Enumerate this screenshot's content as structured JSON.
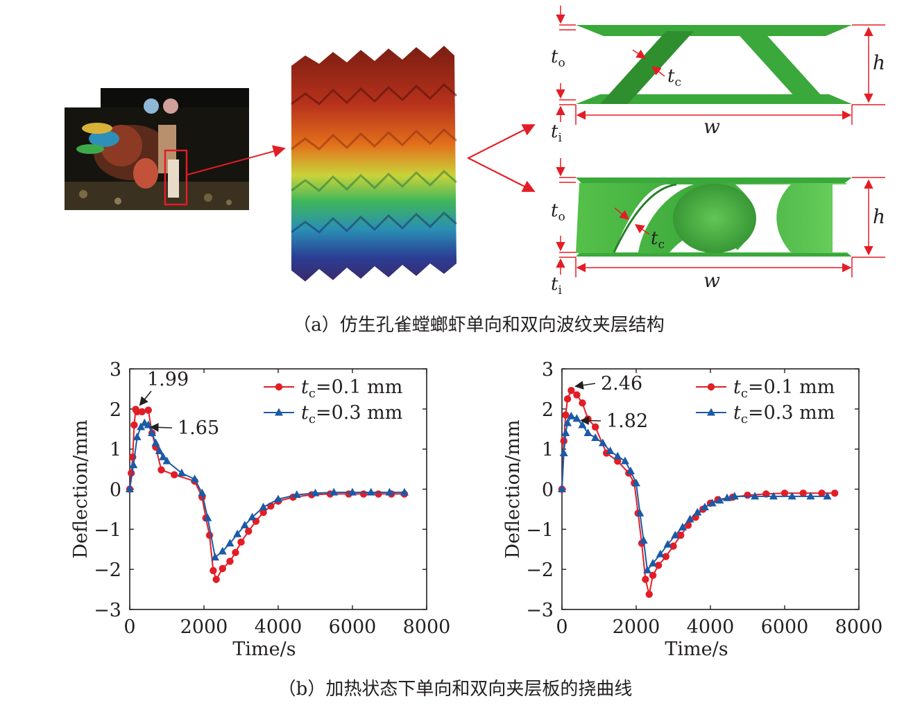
{
  "panel_a": {
    "caption": "（a）仿生孔雀螳螂虾单向和双向波纹夹层结构",
    "dimension_labels": {
      "to_main": "t",
      "to_sub": "o",
      "tc_main": "t",
      "tc_sub": "c",
      "ti_main": "t",
      "ti_sub": "i",
      "h": "h",
      "w": "w"
    }
  },
  "panel_b": {
    "caption": "（b）加热状态下单向和双向夹层板的挠曲线"
  },
  "colors": {
    "series_red": "#e31d25",
    "series_blue": "#1b5aa6",
    "frame_red": "#e31d25",
    "structure_green": "#3aa83a"
  },
  "chart_data": [
    {
      "type": "line",
      "xlabel": "Time/s",
      "ylabel": "Deflection/mm",
      "xlim": [
        0,
        8000
      ],
      "ylim": [
        -3,
        3
      ],
      "xticks": [
        0,
        2000,
        4000,
        6000,
        8000
      ],
      "yticks": [
        3,
        2,
        1,
        0,
        -1,
        -2,
        -3
      ],
      "xtick_labels": [
        "0",
        "2000",
        "4000",
        "6000",
        "8000"
      ],
      "ytick_labels": [
        "3",
        "2",
        "1",
        "0",
        "−1",
        "−2",
        "−3"
      ],
      "legend_position": "top-right",
      "series": [
        {
          "name_main": "t",
          "name_sub": "c",
          "name_rest": "=0.1 mm",
          "marker": "circle",
          "color": "#e31d25",
          "x": [
            0,
            40,
            80,
            120,
            160,
            200,
            330,
            500,
            600,
            700,
            850,
            1200,
            1750,
            1950,
            2050,
            2150,
            2250,
            2330,
            2500,
            2700,
            2850,
            3000,
            3200,
            3400,
            3600,
            3800,
            4000,
            4400,
            4900,
            5400,
            5900,
            6300,
            6700,
            7050,
            7400
          ],
          "y": [
            0,
            0.4,
            0.8,
            1.6,
            1.99,
            1.93,
            1.93,
            1.97,
            1.4,
            1.05,
            0.48,
            0.36,
            0.2,
            -0.2,
            -0.72,
            -1.15,
            -2.03,
            -2.25,
            -1.98,
            -1.8,
            -1.58,
            -1.32,
            -1.05,
            -0.8,
            -0.58,
            -0.42,
            -0.3,
            -0.2,
            -0.14,
            -0.12,
            -0.12,
            -0.12,
            -0.12,
            -0.12,
            -0.12
          ]
        },
        {
          "name_main": "t",
          "name_sub": "c",
          "name_rest": "=0.3 mm",
          "marker": "triangle",
          "color": "#1b5aa6",
          "x": [
            0,
            100,
            200,
            300,
            400,
            500,
            600,
            700,
            800,
            900,
            1000,
            1400,
            1750,
            1950,
            2100,
            2300,
            2500,
            2700,
            2900,
            3100,
            3300,
            3600,
            4000,
            4500,
            5000,
            5500,
            6000,
            6500,
            7000,
            7400
          ],
          "y": [
            0,
            0.6,
            1.3,
            1.55,
            1.65,
            1.6,
            1.4,
            1.15,
            0.95,
            0.8,
            0.7,
            0.4,
            0.25,
            -0.1,
            -0.72,
            -1.7,
            -1.55,
            -1.35,
            -1.12,
            -0.9,
            -0.7,
            -0.45,
            -0.25,
            -0.14,
            -0.1,
            -0.08,
            -0.08,
            -0.08,
            -0.08,
            -0.08
          ]
        }
      ],
      "annotations": [
        {
          "text": "1.99",
          "x": 160,
          "y": 1.99,
          "series": 0
        },
        {
          "text": "1.65",
          "x": 450,
          "y": 1.65,
          "series": 1
        }
      ]
    },
    {
      "type": "line",
      "xlabel": "Time/s",
      "ylabel": "Deflection/mm",
      "xlim": [
        0,
        8000
      ],
      "ylim": [
        -3,
        3
      ],
      "xticks": [
        0,
        2000,
        4000,
        6000,
        8000
      ],
      "yticks": [
        3,
        2,
        1,
        0,
        -1,
        -2,
        -3
      ],
      "xtick_labels": [
        "0",
        "2000",
        "4000",
        "6000",
        "8000"
      ],
      "ytick_labels": [
        "3",
        "2",
        "1",
        "0",
        "−1",
        "−2",
        "−3"
      ],
      "legend_position": "top-right",
      "series": [
        {
          "name_main": "t",
          "name_sub": "c",
          "name_rest": "=0.1 mm",
          "marker": "circle",
          "color": "#e31d25",
          "x": [
            0,
            50,
            100,
            150,
            250,
            400,
            550,
            700,
            900,
            1200,
            1500,
            1800,
            1950,
            2050,
            2150,
            2250,
            2350,
            2450,
            2600,
            2800,
            3000,
            3200,
            3400,
            3600,
            3800,
            4000,
            4200,
            4600,
            5000,
            5500,
            6000,
            6500,
            7000,
            7350
          ],
          "y": [
            0,
            1.2,
            1.85,
            2.25,
            2.46,
            2.35,
            2.15,
            1.75,
            1.55,
            0.9,
            0.7,
            0.4,
            0.15,
            -0.6,
            -1.35,
            -2.25,
            -2.62,
            -2.15,
            -1.9,
            -1.68,
            -1.42,
            -1.15,
            -0.9,
            -0.7,
            -0.5,
            -0.35,
            -0.26,
            -0.2,
            -0.15,
            -0.12,
            -0.1,
            -0.1,
            -0.1,
            -0.1
          ]
        },
        {
          "name_main": "t",
          "name_sub": "c",
          "name_rest": "=0.3 mm",
          "marker": "triangle",
          "color": "#1b5aa6",
          "x": [
            0,
            50,
            100,
            150,
            250,
            400,
            550,
            700,
            900,
            1100,
            1300,
            1500,
            1700,
            1850,
            2000,
            2100,
            2200,
            2300,
            2450,
            2650,
            2850,
            3050,
            3250,
            3450,
            3650,
            3850,
            4050,
            4250,
            4450,
            4650,
            5200,
            5700,
            6200,
            6700,
            7150
          ],
          "y": [
            0,
            0.9,
            1.4,
            1.65,
            1.82,
            1.76,
            1.6,
            1.4,
            1.28,
            1.15,
            0.95,
            0.82,
            0.7,
            0.45,
            0.15,
            -0.6,
            -1.28,
            -2.02,
            -1.85,
            -1.62,
            -1.38,
            -1.15,
            -0.95,
            -0.75,
            -0.58,
            -0.45,
            -0.35,
            -0.28,
            -0.22,
            -0.18,
            -0.18,
            -0.18,
            -0.18,
            -0.18,
            -0.18
          ]
        }
      ],
      "annotations": [
        {
          "text": "2.46",
          "x": 250,
          "y": 2.46,
          "series": 0
        },
        {
          "text": "1.82",
          "x": 400,
          "y": 1.82,
          "series": 1
        }
      ]
    }
  ]
}
